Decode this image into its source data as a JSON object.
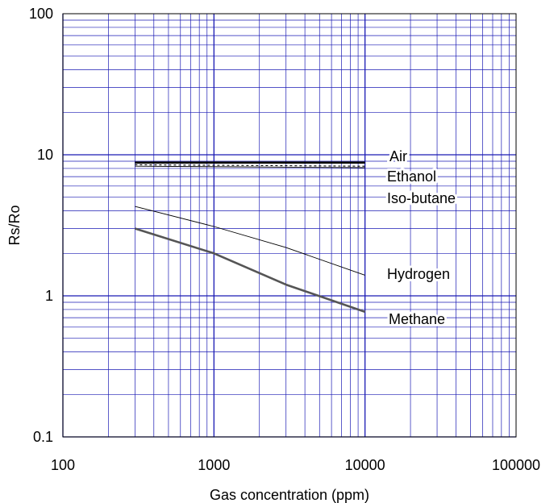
{
  "chart_data": {
    "type": "line",
    "xlabel": "Gas concentration (ppm)",
    "ylabel": "Rs/Ro",
    "x_scale": "log",
    "y_scale": "log",
    "xlim": [
      100,
      100000
    ],
    "ylim": [
      0.1,
      100
    ],
    "x_ticks": [
      "100",
      "1000",
      "10000",
      "100000"
    ],
    "y_ticks": [
      "0.1",
      "1",
      "10",
      "100"
    ],
    "grid": true,
    "series": [
      {
        "name": "Air",
        "color": "#000000",
        "style": "solid-thick",
        "x": [
          300,
          10000
        ],
        "y": [
          8.8,
          8.8
        ]
      },
      {
        "name": "Ethanol",
        "color": "#000000",
        "style": "dashed",
        "x": [
          300,
          10000
        ],
        "y": [
          8.5,
          8.3
        ]
      },
      {
        "name": "Iso-butane",
        "color": "#000000",
        "style": "solid-thin",
        "x": [
          300,
          10000
        ],
        "y": [
          8.3,
          8.1
        ]
      },
      {
        "name": "Hydrogen",
        "color": "#000000",
        "style": "solid-thin",
        "x": [
          300,
          1000,
          3000,
          10000
        ],
        "y": [
          4.3,
          3.1,
          2.2,
          1.4
        ]
      },
      {
        "name": "Methane",
        "color": "#555555",
        "style": "solid-thick",
        "x": [
          300,
          1000,
          3000,
          10000
        ],
        "y": [
          3.0,
          2.0,
          1.2,
          0.77
        ]
      }
    ]
  }
}
